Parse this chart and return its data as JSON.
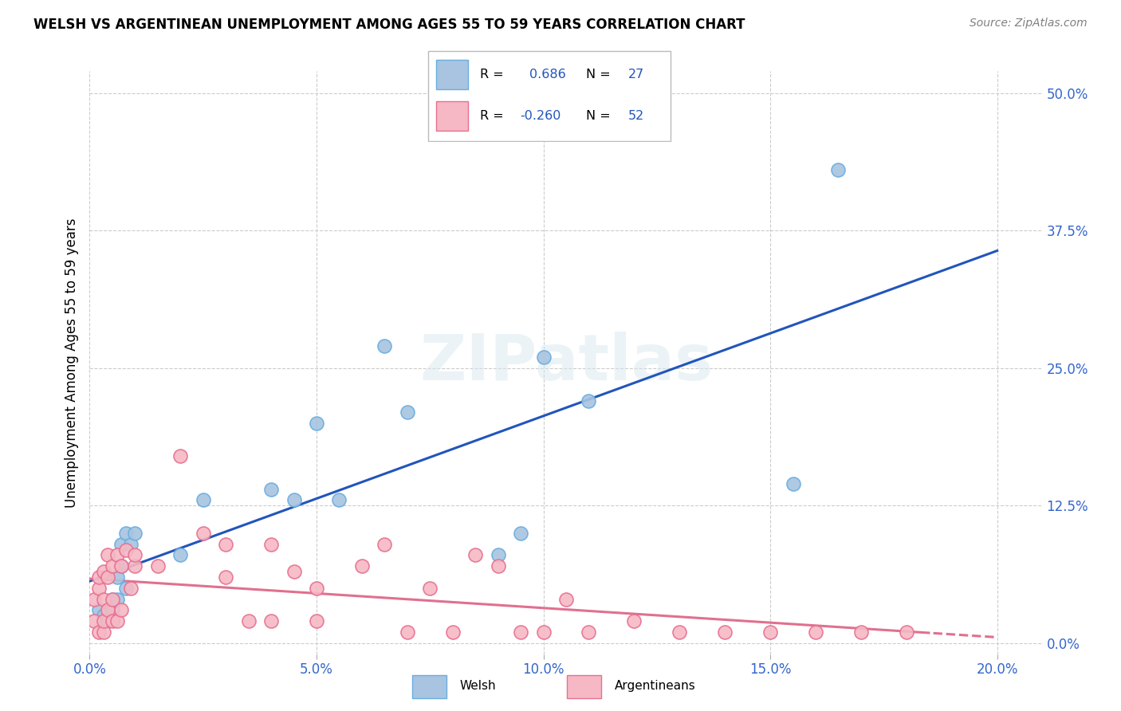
{
  "title": "WELSH VS ARGENTINEAN UNEMPLOYMENT AMONG AGES 55 TO 59 YEARS CORRELATION CHART",
  "source": "Source: ZipAtlas.com",
  "ylabel": "Unemployment Among Ages 55 to 59 years",
  "xlabel_ticks": [
    "0.0%",
    "5.0%",
    "10.0%",
    "15.0%",
    "20.0%"
  ],
  "ylabel_ticks": [
    "0.0%",
    "12.5%",
    "25.0%",
    "37.5%",
    "50.0%"
  ],
  "xlim": [
    0.0,
    0.21
  ],
  "ylim": [
    -0.01,
    0.52
  ],
  "welsh_color": "#a8c4e0",
  "welsh_edge_color": "#6aaee0",
  "argentinean_color": "#f5b8c4",
  "argentinean_edge_color": "#e87090",
  "welsh_line_color": "#2255bb",
  "argentinean_line_color": "#e07090",
  "welsh_R": 0.686,
  "welsh_N": 27,
  "argentinean_R": -0.26,
  "argentinean_N": 52,
  "watermark_zip": "ZIP",
  "watermark_atlas": "atlas",
  "welsh_x": [
    0.002,
    0.003,
    0.004,
    0.005,
    0.005,
    0.006,
    0.006,
    0.007,
    0.007,
    0.008,
    0.008,
    0.009,
    0.01,
    0.02,
    0.025,
    0.04,
    0.045,
    0.05,
    0.055,
    0.065,
    0.07,
    0.09,
    0.095,
    0.1,
    0.11,
    0.155,
    0.165
  ],
  "welsh_y": [
    0.03,
    0.025,
    0.02,
    0.03,
    0.04,
    0.04,
    0.06,
    0.07,
    0.09,
    0.05,
    0.1,
    0.09,
    0.1,
    0.08,
    0.13,
    0.14,
    0.13,
    0.2,
    0.13,
    0.27,
    0.21,
    0.08,
    0.1,
    0.26,
    0.22,
    0.145,
    0.43
  ],
  "argentinean_x": [
    0.001,
    0.001,
    0.002,
    0.002,
    0.002,
    0.003,
    0.003,
    0.003,
    0.003,
    0.004,
    0.004,
    0.004,
    0.005,
    0.005,
    0.005,
    0.006,
    0.006,
    0.007,
    0.007,
    0.008,
    0.009,
    0.01,
    0.01,
    0.015,
    0.02,
    0.025,
    0.03,
    0.03,
    0.035,
    0.04,
    0.04,
    0.045,
    0.05,
    0.05,
    0.06,
    0.065,
    0.07,
    0.075,
    0.08,
    0.085,
    0.09,
    0.095,
    0.1,
    0.105,
    0.11,
    0.12,
    0.13,
    0.14,
    0.15,
    0.16,
    0.17,
    0.18
  ],
  "argentinean_y": [
    0.02,
    0.04,
    0.01,
    0.05,
    0.06,
    0.01,
    0.02,
    0.04,
    0.065,
    0.03,
    0.06,
    0.08,
    0.02,
    0.04,
    0.07,
    0.02,
    0.08,
    0.03,
    0.07,
    0.085,
    0.05,
    0.07,
    0.08,
    0.07,
    0.17,
    0.1,
    0.06,
    0.09,
    0.02,
    0.02,
    0.09,
    0.065,
    0.02,
    0.05,
    0.07,
    0.09,
    0.01,
    0.05,
    0.01,
    0.08,
    0.07,
    0.01,
    0.01,
    0.04,
    0.01,
    0.02,
    0.01,
    0.01,
    0.01,
    0.01,
    0.01,
    0.01
  ]
}
